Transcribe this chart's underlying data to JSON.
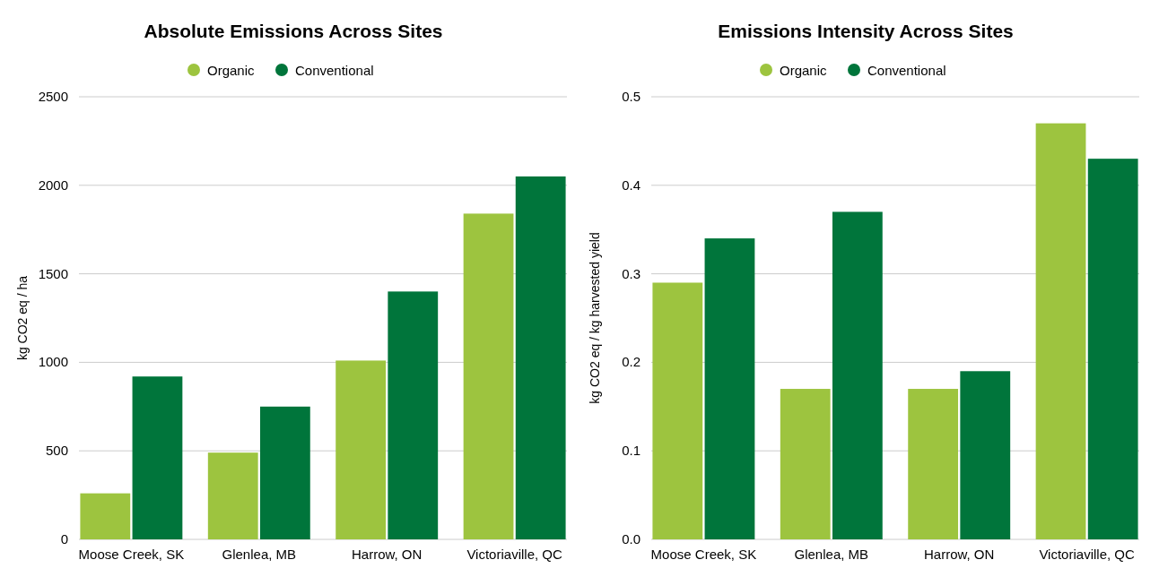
{
  "chart_data": [
    {
      "type": "bar",
      "title": "Absolute Emissions Across Sites",
      "ylabel": "kg CO2 eq / ha",
      "categories": [
        "Moose Creek, SK",
        "Glenlea, MB",
        "Harrow, ON",
        "Victoriaville, QC"
      ],
      "series": [
        {
          "name": "Organic",
          "color": "#9dc43f",
          "values": [
            260,
            490,
            1010,
            1840
          ]
        },
        {
          "name": "Conventional",
          "color": "#00753b",
          "values": [
            920,
            750,
            1400,
            2050
          ]
        }
      ],
      "ylim": [
        0,
        2500
      ],
      "yticks": [
        0,
        500,
        1000,
        1500,
        2000,
        2500
      ],
      "grid": "y",
      "legend": "top"
    },
    {
      "type": "bar",
      "title": "Emissions Intensity Across Sites",
      "ylabel": "kg CO2 eq / kg harvested yield",
      "categories": [
        "Moose Creek, SK",
        "Glenlea, MB",
        "Harrow, ON",
        "Victoriaville, QC"
      ],
      "series": [
        {
          "name": "Organic",
          "color": "#9dc43f",
          "values": [
            0.29,
            0.17,
            0.17,
            0.47
          ]
        },
        {
          "name": "Conventional",
          "color": "#00753b",
          "values": [
            0.34,
            0.37,
            0.19,
            0.43
          ]
        }
      ],
      "ylim": [
        0,
        0.5
      ],
      "yticks": [
        {
          "value": 0,
          "label": "0.0"
        },
        0.1,
        0.2,
        0.3,
        0.4,
        0.5
      ],
      "grid": "y",
      "legend": "top"
    }
  ]
}
